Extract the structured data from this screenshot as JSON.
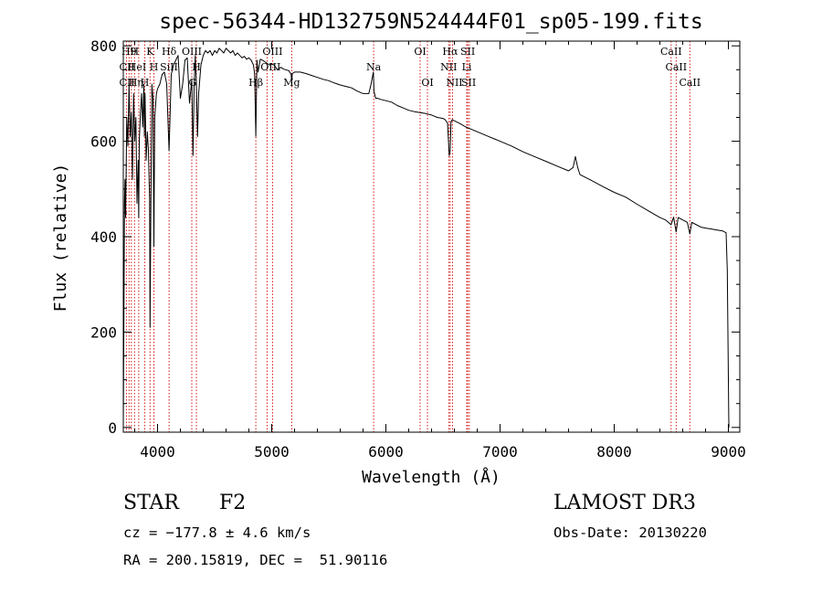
{
  "chart_data": {
    "type": "line",
    "title": "spec-56344-HD132759N524444F01_sp05-199.fits",
    "xlabel": "Wavelength (Å)",
    "ylabel": "Flux (relative)",
    "xlim": [
      3700,
      9100
    ],
    "ylim": [
      -10,
      810
    ],
    "xticks": [
      4000,
      5000,
      6000,
      7000,
      8000,
      9000
    ],
    "yticks": [
      0,
      200,
      400,
      600,
      800
    ],
    "series": [
      {
        "name": "flux",
        "x": [
          3700,
          3705,
          3710,
          3715,
          3720,
          3730,
          3740,
          3750,
          3760,
          3770,
          3780,
          3790,
          3800,
          3810,
          3820,
          3830,
          3835,
          3840,
          3850,
          3860,
          3870,
          3880,
          3885,
          3890,
          3900,
          3910,
          3920,
          3930,
          3934,
          3940,
          3950,
          3960,
          3968,
          3975,
          3990,
          4000,
          4020,
          4040,
          4060,
          4080,
          4101,
          4120,
          4140,
          4160,
          4180,
          4200,
          4220,
          4240,
          4260,
          4280,
          4300,
          4310,
          4320,
          4330,
          4340,
          4350,
          4360,
          4380,
          4400,
          4420,
          4440,
          4460,
          4480,
          4500,
          4520,
          4540,
          4560,
          4580,
          4600,
          4620,
          4640,
          4660,
          4680,
          4700,
          4720,
          4740,
          4760,
          4780,
          4800,
          4820,
          4840,
          4850,
          4861,
          4870,
          4880,
          4900,
          4920,
          4950,
          4980,
          5000,
          5020,
          5050,
          5080,
          5100,
          5120,
          5150,
          5170,
          5175,
          5180,
          5200,
          5250,
          5300,
          5350,
          5400,
          5450,
          5500,
          5550,
          5600,
          5650,
          5700,
          5750,
          5800,
          5850,
          5870,
          5890,
          5896,
          5910,
          5930,
          5950,
          6000,
          6050,
          6100,
          6150,
          6200,
          6250,
          6300,
          6350,
          6400,
          6450,
          6500,
          6520,
          6540,
          6555,
          6563,
          6570,
          6580,
          6600,
          6650,
          6700,
          6750,
          6800,
          6850,
          6900,
          6950,
          7000,
          7100,
          7200,
          7300,
          7400,
          7500,
          7600,
          7640,
          7660,
          7680,
          7700,
          7800,
          7900,
          8000,
          8100,
          8200,
          8300,
          8400,
          8450,
          8498,
          8520,
          8542,
          8560,
          8600,
          8640,
          8662,
          8680,
          8720,
          8760,
          8800,
          8850,
          8900,
          8950,
          8980,
          8990,
          8995,
          9000,
          9003,
          9005
        ],
        "y": [
          0,
          220,
          470,
          520,
          440,
          650,
          590,
          720,
          610,
          660,
          520,
          700,
          600,
          650,
          470,
          560,
          440,
          600,
          660,
          700,
          630,
          720,
          610,
          700,
          560,
          620,
          580,
          480,
          210,
          420,
          720,
          690,
          380,
          650,
          700,
          710,
          720,
          740,
          745,
          720,
          580,
          740,
          760,
          770,
          780,
          690,
          720,
          770,
          775,
          680,
          730,
          570,
          710,
          780,
          720,
          610,
          700,
          760,
          780,
          790,
          785,
          790,
          780,
          790,
          785,
          795,
          790,
          785,
          795,
          790,
          785,
          790,
          780,
          785,
          780,
          775,
          778,
          772,
          775,
          770,
          760,
          740,
          610,
          770,
          745,
          772,
          770,
          765,
          760,
          762,
          760,
          750,
          755,
          752,
          750,
          748,
          740,
          720,
          742,
          745,
          745,
          742,
          738,
          734,
          730,
          727,
          722,
          718,
          715,
          712,
          705,
          700,
          700,
          720,
          745,
          705,
          690,
          690,
          688,
          685,
          682,
          675,
          670,
          665,
          662,
          660,
          658,
          655,
          650,
          648,
          645,
          638,
          570,
          580,
          640,
          645,
          643,
          637,
          630,
          625,
          620,
          615,
          610,
          605,
          600,
          590,
          578,
          568,
          558,
          548,
          538,
          545,
          568,
          545,
          530,
          518,
          505,
          493,
          483,
          468,
          454,
          440,
          435,
          425,
          441,
          410,
          440,
          435,
          430,
          406,
          430,
          425,
          420,
          418,
          416,
          414,
          412,
          408,
          330,
          215,
          100,
          20,
          0
        ]
      }
    ],
    "line_labels": [
      {
        "wl": 3750,
        "row": 1,
        "text": "H9"
      },
      {
        "wl": 3733,
        "row": 2,
        "text": "CII"
      },
      {
        "wl": 3733,
        "row": 3,
        "text": "CII"
      },
      {
        "wl": 3798,
        "row": 1,
        "text": "H"
      },
      {
        "wl": 3820,
        "row": 2,
        "text": "HeI"
      },
      {
        "wl": 3810,
        "row": 3,
        "text": "Hη"
      },
      {
        "wl": 3889,
        "row": 3,
        "text": "H"
      },
      {
        "wl": 3934,
        "row": 1,
        "text": "K"
      },
      {
        "wl": 3968,
        "row": 2,
        "text": "H"
      },
      {
        "wl": 4101,
        "row": 1,
        "text": "Hδ"
      },
      {
        "wl": 4100,
        "row": 2,
        "text": "SiII"
      },
      {
        "wl": 4300,
        "row": 1,
        "text": "OIII"
      },
      {
        "wl": 4340,
        "row": 2,
        "text": "H"
      },
      {
        "wl": 4307,
        "row": 3,
        "text": "G"
      },
      {
        "wl": 4861,
        "row": 3,
        "text": "Hβ"
      },
      {
        "wl": 5007,
        "row": 1,
        "text": "OIII"
      },
      {
        "wl": 4990,
        "row": 2,
        "text": "OIII"
      },
      {
        "wl": 5175,
        "row": 3,
        "text": "Mg"
      },
      {
        "wl": 5893,
        "row": 2,
        "text": "Na"
      },
      {
        "wl": 6300,
        "row": 1,
        "text": "OI"
      },
      {
        "wl": 6364,
        "row": 3,
        "text": "OI"
      },
      {
        "wl": 6563,
        "row": 1,
        "text": "Hα"
      },
      {
        "wl": 6550,
        "row": 2,
        "text": "NII"
      },
      {
        "wl": 6600,
        "row": 3,
        "text": "NII"
      },
      {
        "wl": 6717,
        "row": 1,
        "text": "SII"
      },
      {
        "wl": 6708,
        "row": 2,
        "text": "Li"
      },
      {
        "wl": 6725,
        "row": 3,
        "text": "SII"
      },
      {
        "wl": 8498,
        "row": 1,
        "text": "CaII"
      },
      {
        "wl": 8542,
        "row": 2,
        "text": "CaII"
      },
      {
        "wl": 8662,
        "row": 3,
        "text": "CaII"
      }
    ],
    "line_markers": [
      3727,
      3750,
      3770,
      3798,
      3835,
      3889,
      3934,
      3968,
      4101,
      4300,
      4340,
      4861,
      4959,
      5007,
      5175,
      5893,
      6300,
      6364,
      6550,
      6563,
      6584,
      6708,
      6717,
      6731,
      8498,
      8542,
      8662
    ]
  },
  "info": {
    "object_class": "STAR",
    "subclass": "F2",
    "survey": "LAMOST DR3",
    "velocity": "cz = −177.8 ± 4.6 km/s",
    "obs_date": "Obs-Date: 20130220",
    "coords": "RA = 200.15819, DEC =  51.90116"
  },
  "colors": {
    "marker": "#cc0000",
    "line": "#000000"
  }
}
